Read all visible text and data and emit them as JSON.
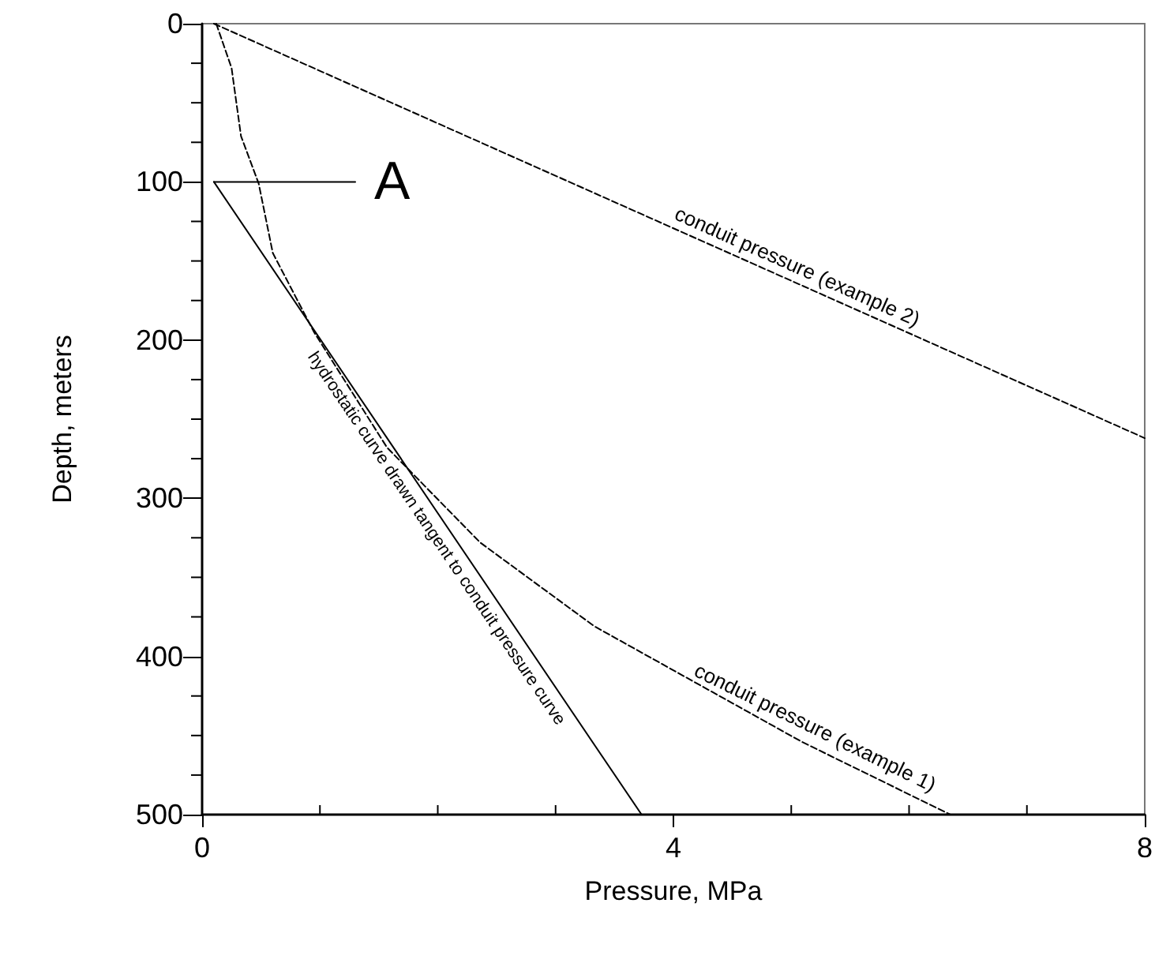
{
  "chart_data": {
    "type": "line",
    "xlabel": "Pressure, MPa",
    "ylabel": "Depth, meters",
    "xlim": [
      0,
      8
    ],
    "xticks": [
      0,
      4,
      8
    ],
    "ylim": [
      500,
      0
    ],
    "yticks": [
      0,
      100,
      200,
      300,
      400,
      500
    ],
    "grid": false,
    "legend": false,
    "marker": "none",
    "series": [
      {
        "name": "conduit pressure (example 2)",
        "color": "#000000",
        "line_style": "dashed",
        "x": [
          0.1,
          8
        ],
        "values": [
          0,
          262
        ]
      },
      {
        "name": "conduit pressure (example 1)",
        "color": "#000000",
        "line_style": "dashed",
        "x": [
          0.12,
          0.25,
          0.33,
          0.48,
          0.6,
          0.95,
          1.57,
          2.36,
          3.33,
          5.09,
          6.35
        ],
        "values": [
          0,
          28,
          71,
          101,
          145,
          195,
          268,
          328,
          381,
          454,
          500
        ]
      },
      {
        "name": "hydrostatic curve drawn tangent to conduit pressure curve",
        "color": "#000000",
        "line_style": "solid",
        "x": [
          0.1,
          3.73
        ],
        "values": [
          100,
          500
        ]
      },
      {
        "color": "#000000",
        "line_style": "solid",
        "x": [
          0.1,
          1.3
        ],
        "values": [
          100,
          100
        ]
      }
    ],
    "annotations": [
      "A"
    ]
  }
}
